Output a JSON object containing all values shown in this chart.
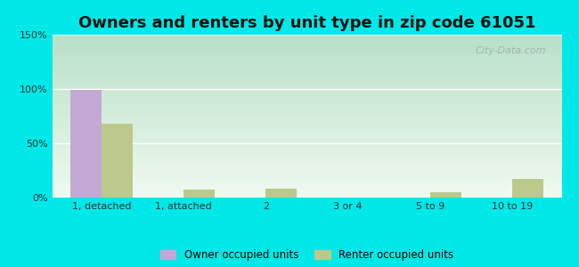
{
  "title": "Owners and renters by unit type in zip code 61051",
  "categories": [
    "1, detached",
    "1, attached",
    "2",
    "3 or 4",
    "5 to 9",
    "10 to 19"
  ],
  "owner_values": [
    99,
    0,
    0,
    0,
    0,
    0
  ],
  "renter_values": [
    68,
    7,
    8,
    0,
    5,
    17
  ],
  "owner_color": "#c4a8d4",
  "renter_color": "#bcc98a",
  "bg_top_left": "#b8e0c8",
  "bg_bottom_right": "#f0faf0",
  "outer_bg": "#00e8e8",
  "ylim": [
    0,
    150
  ],
  "yticks": [
    0,
    50,
    100,
    150
  ],
  "ytick_labels": [
    "0%",
    "50%",
    "100%",
    "150%"
  ],
  "bar_width": 0.38,
  "title_fontsize": 13,
  "watermark": "City-Data.com",
  "legend_labels": [
    "Owner occupied units",
    "Renter occupied units"
  ]
}
